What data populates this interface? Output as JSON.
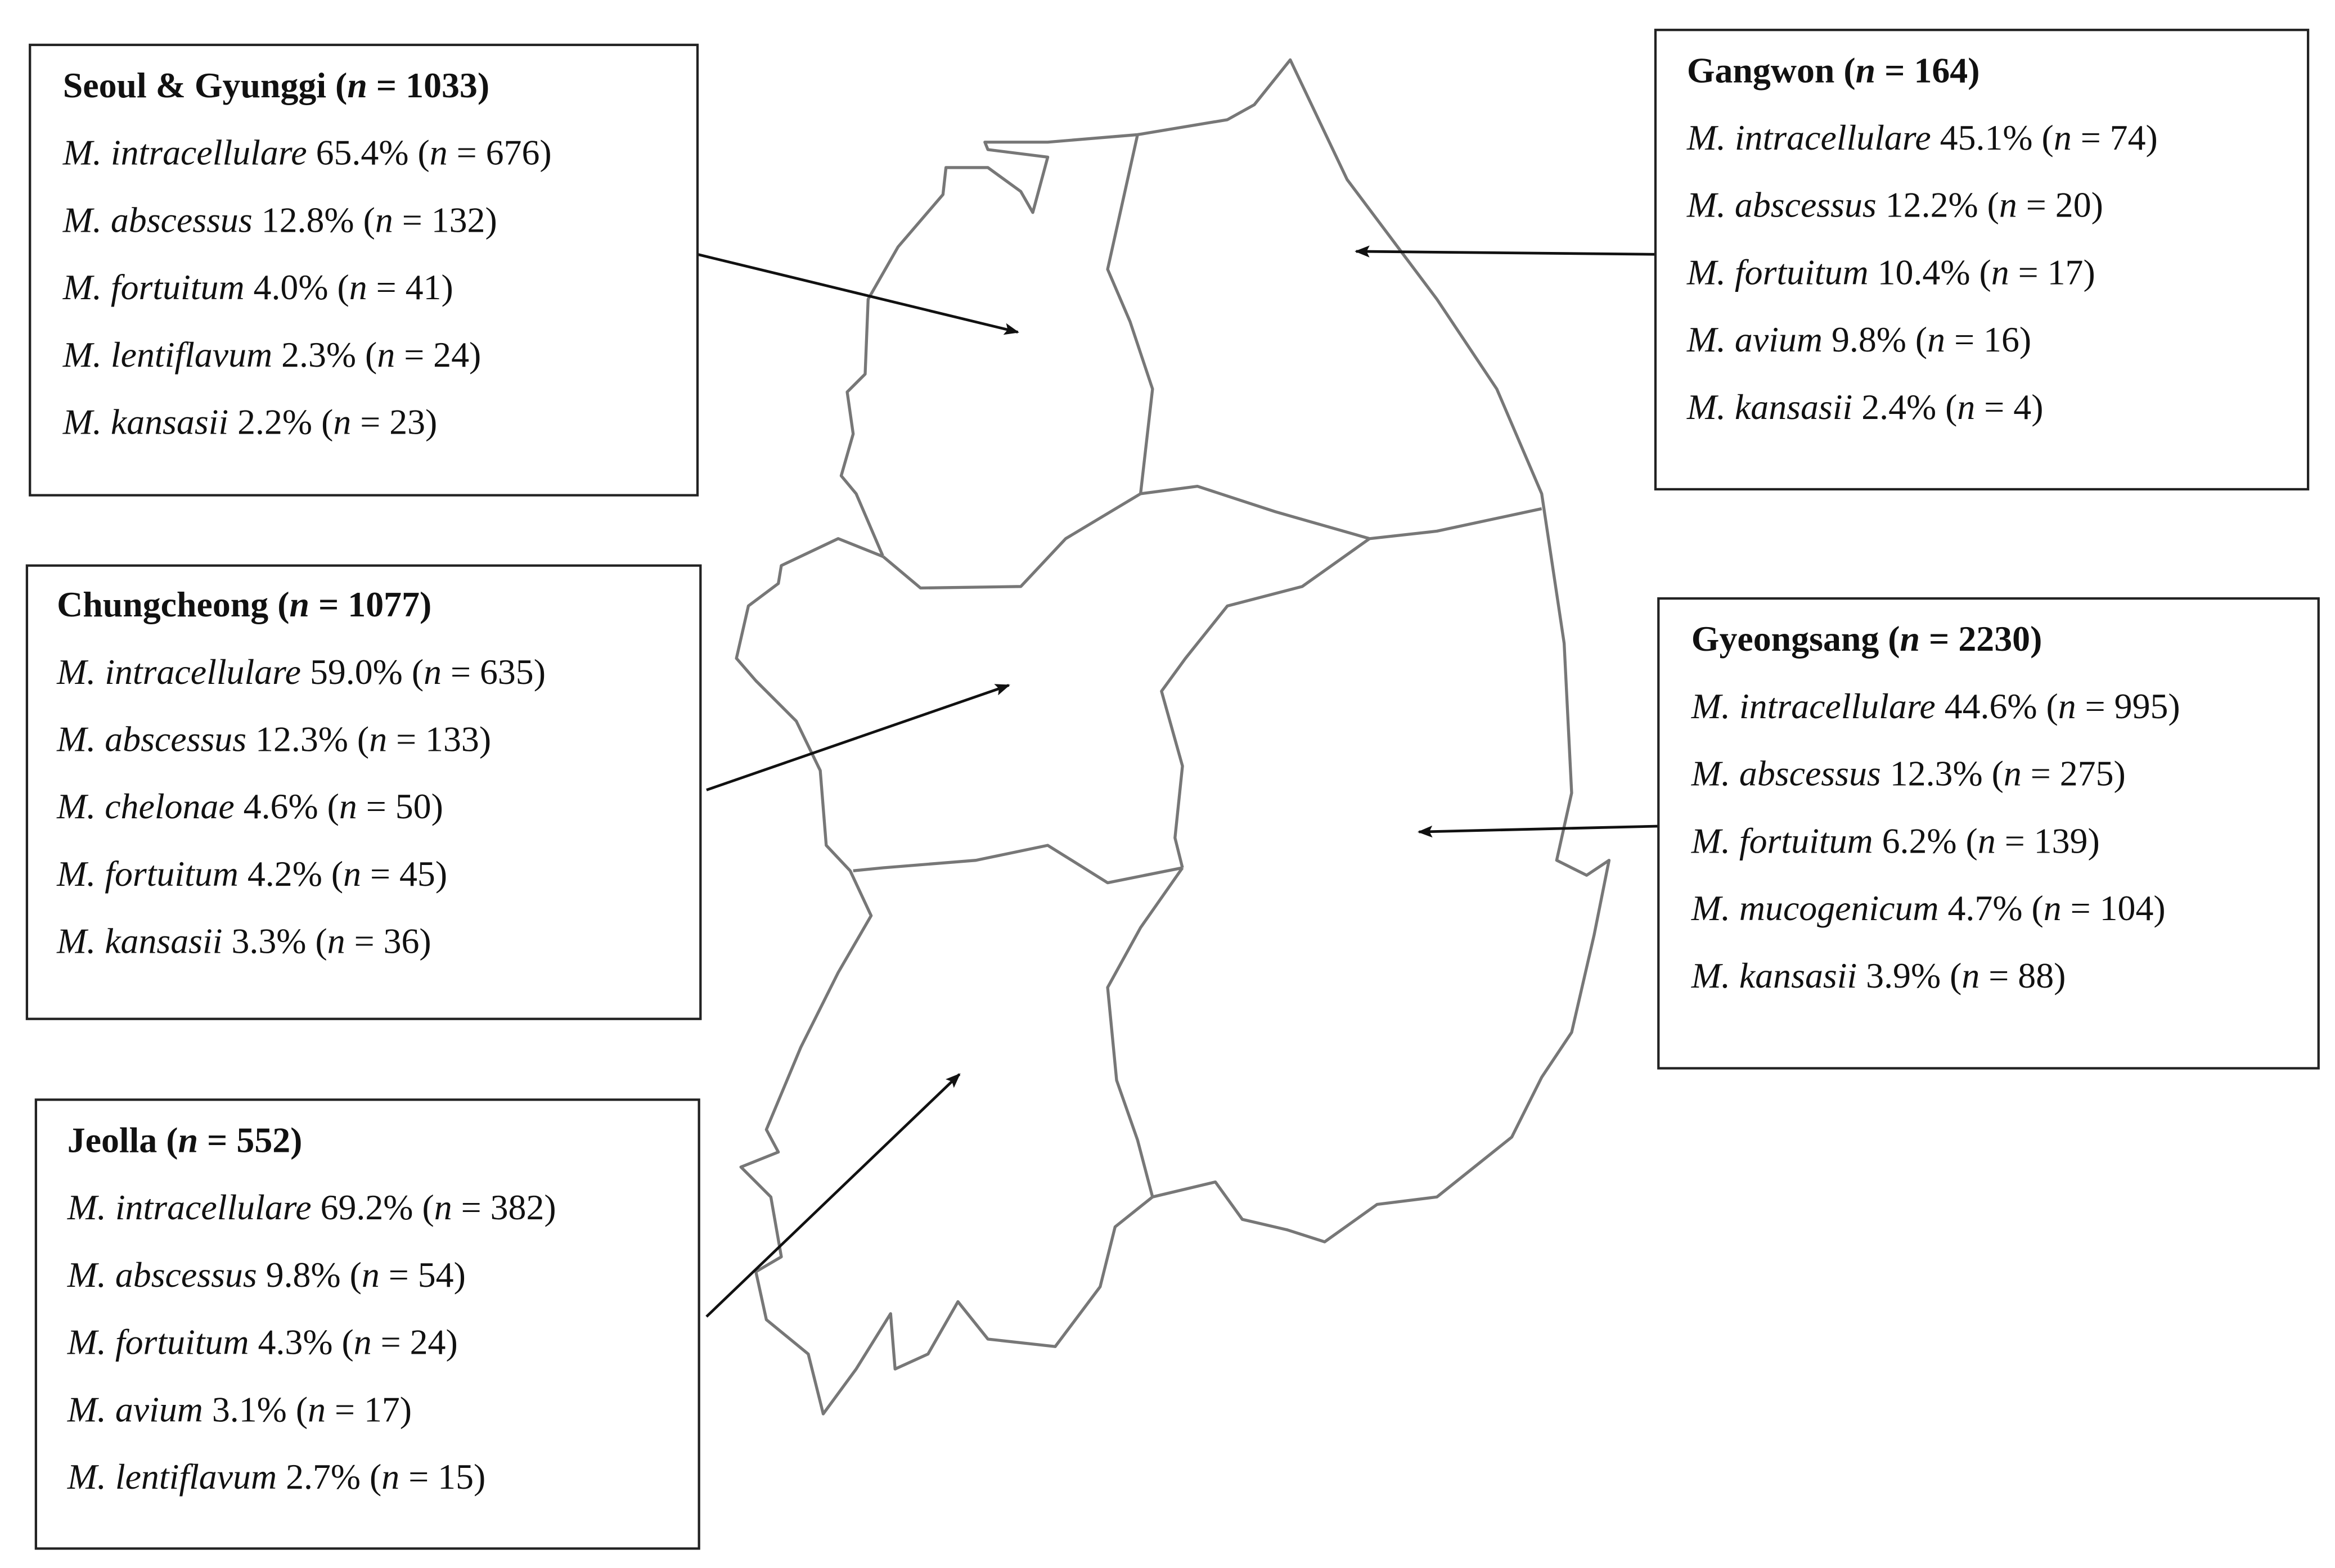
{
  "regions": [
    {
      "title": [
        {
          "text": "Seoul & Gyunggi (",
          "bold": true
        },
        {
          "text": "n",
          "bold": true,
          "italic": true
        },
        {
          "text": " = 1033)",
          "bold": true
        }
      ],
      "lines": [
        [
          {
            "text": "M. intracellulare",
            "italic": true
          },
          {
            "text": " 65.4% ("
          },
          {
            "text": "n",
            "italic": true
          },
          {
            "text": " = 676)"
          }
        ],
        [
          {
            "text": "M. abscessus",
            "italic": true
          },
          {
            "text": " 12.8% ("
          },
          {
            "text": "n",
            "italic": true
          },
          {
            "text": " = 132)"
          }
        ],
        [
          {
            "text": "M. fortuitum",
            "italic": true
          },
          {
            "text": " 4.0% ("
          },
          {
            "text": "n",
            "italic": true
          },
          {
            "text": " = 41)"
          }
        ],
        [
          {
            "text": "M. lentiflavum",
            "italic": true
          },
          {
            "text": " 2.3% ("
          },
          {
            "text": "n",
            "italic": true
          },
          {
            "text": " = 24)"
          }
        ],
        [
          {
            "text": "M. kansasii",
            "italic": true
          },
          {
            "text": " 2.2% ("
          },
          {
            "text": "n",
            "italic": true
          },
          {
            "text": " = 23)"
          }
        ]
      ]
    },
    {
      "title": [
        {
          "text": "Chungcheong (",
          "bold": true
        },
        {
          "text": "n",
          "bold": true,
          "italic": true
        },
        {
          "text": " = 1077)",
          "bold": true
        }
      ],
      "lines": [
        [
          {
            "text": "M. intracellulare",
            "italic": true
          },
          {
            "text": " 59.0% ("
          },
          {
            "text": "n",
            "italic": true
          },
          {
            "text": " = 635)"
          }
        ],
        [
          {
            "text": "M. abscessus",
            "italic": true
          },
          {
            "text": " 12.3% ("
          },
          {
            "text": "n",
            "italic": true
          },
          {
            "text": " = 133)"
          }
        ],
        [
          {
            "text": "M. chelonae",
            "italic": true
          },
          {
            "text": " 4.6% ("
          },
          {
            "text": "n",
            "italic": true
          },
          {
            "text": " = 50)"
          }
        ],
        [
          {
            "text": "M. fortuitum",
            "italic": true
          },
          {
            "text": " 4.2% ("
          },
          {
            "text": "n",
            "italic": true
          },
          {
            "text": " = 45)"
          }
        ],
        [
          {
            "text": "M. kansasii",
            "italic": true
          },
          {
            "text": " 3.3% ("
          },
          {
            "text": "n",
            "italic": true
          },
          {
            "text": " = 36)"
          }
        ]
      ]
    },
    {
      "title": [
        {
          "text": "Jeolla (",
          "bold": true
        },
        {
          "text": "n",
          "bold": true,
          "italic": true
        },
        {
          "text": " = 552)",
          "bold": true
        }
      ],
      "lines": [
        [
          {
            "text": "M. intracellulare",
            "italic": true
          },
          {
            "text": " 69.2% ("
          },
          {
            "text": "n",
            "italic": true
          },
          {
            "text": " = 382)"
          }
        ],
        [
          {
            "text": "M. abscessus",
            "italic": true
          },
          {
            "text": " 9.8% ("
          },
          {
            "text": "n",
            "italic": true
          },
          {
            "text": " = 54)"
          }
        ],
        [
          {
            "text": "M. fortuitum",
            "italic": true
          },
          {
            "text": " 4.3% ("
          },
          {
            "text": "n",
            "italic": true
          },
          {
            "text": " = 24)"
          }
        ],
        [
          {
            "text": "M. avium",
            "italic": true
          },
          {
            "text": " 3.1% ("
          },
          {
            "text": "n",
            "italic": true
          },
          {
            "text": " = 17)"
          }
        ],
        [
          {
            "text": "M. lentiflavum",
            "italic": true
          },
          {
            "text": " 2.7% ("
          },
          {
            "text": "n",
            "italic": true
          },
          {
            "text": " = 15)"
          }
        ]
      ]
    },
    {
      "title": [
        {
          "text": "Gangwon (",
          "bold": true
        },
        {
          "text": "n",
          "bold": true,
          "italic": true
        },
        {
          "text": " = 164)",
          "bold": true
        }
      ],
      "lines": [
        [
          {
            "text": "M. intracellulare",
            "italic": true
          },
          {
            "text": " 45.1% ("
          },
          {
            "text": "n",
            "italic": true
          },
          {
            "text": " = 74)"
          }
        ],
        [
          {
            "text": "M. abscessus",
            "italic": true
          },
          {
            "text": " 12.2% ("
          },
          {
            "text": "n",
            "italic": true
          },
          {
            "text": " = 20)"
          }
        ],
        [
          {
            "text": "M. fortuitum",
            "italic": true
          },
          {
            "text": " 10.4% ("
          },
          {
            "text": "n",
            "italic": true
          },
          {
            "text": " = 17)"
          }
        ],
        [
          {
            "text": "M. avium",
            "italic": true
          },
          {
            "text": " 9.8% ("
          },
          {
            "text": "n",
            "italic": true
          },
          {
            "text": " = 16)"
          }
        ],
        [
          {
            "text": "M. kansasii",
            "italic": true
          },
          {
            "text": " 2.4% ("
          },
          {
            "text": "n",
            "italic": true
          },
          {
            "text": " = 4)"
          }
        ]
      ]
    },
    {
      "title": [
        {
          "text": "Gyeongsang (",
          "bold": true
        },
        {
          "text": "n",
          "bold": true,
          "italic": true
        },
        {
          "text": " = 2230)",
          "bold": true
        }
      ],
      "lines": [
        [
          {
            "text": "M. intracellulare",
            "italic": true
          },
          {
            "text": " 44.6% ("
          },
          {
            "text": "n",
            "italic": true
          },
          {
            "text": " = 995)"
          }
        ],
        [
          {
            "text": "M. abscessus",
            "italic": true
          },
          {
            "text": " 12.3% ("
          },
          {
            "text": "n",
            "italic": true
          },
          {
            "text": " = 275)"
          }
        ],
        [
          {
            "text": "M. fortuitum",
            "italic": true
          },
          {
            "text": " 6.2% ("
          },
          {
            "text": "n",
            "italic": true
          },
          {
            "text": " = 139)"
          }
        ],
        [
          {
            "text": "M. mucogenicum",
            "italic": true
          },
          {
            "text": " 4.7% ("
          },
          {
            "text": "n",
            "italic": true
          },
          {
            "text": " = 104)"
          }
        ],
        [
          {
            "text": "M. kansasii",
            "italic": true
          },
          {
            "text": " 3.9% ("
          },
          {
            "text": "n",
            "italic": true
          },
          {
            "text": " = 88)"
          }
        ]
      ]
    }
  ]
}
